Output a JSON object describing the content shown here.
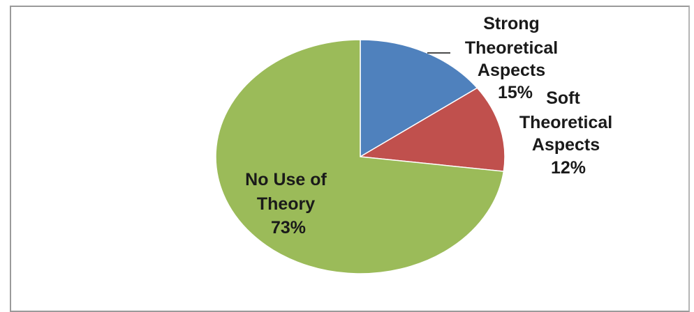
{
  "chart_data": {
    "type": "pie",
    "title": "",
    "slices": [
      {
        "label_lines": [
          "Strong",
          "Theoretical",
          "Aspects"
        ],
        "percent_label": "15%",
        "value": 15,
        "color": "#4f81bd"
      },
      {
        "label_lines": [
          "Soft",
          "Theoretical",
          "Aspects"
        ],
        "percent_label": "12%",
        "value": 12,
        "color": "#c0504d"
      },
      {
        "label_lines": [
          "No Use of",
          "Theory"
        ],
        "percent_label": "73%",
        "value": 73,
        "color": "#9bbb59"
      }
    ],
    "legend": "none",
    "start_angle": "12 o'clock",
    "direction": "clockwise"
  }
}
